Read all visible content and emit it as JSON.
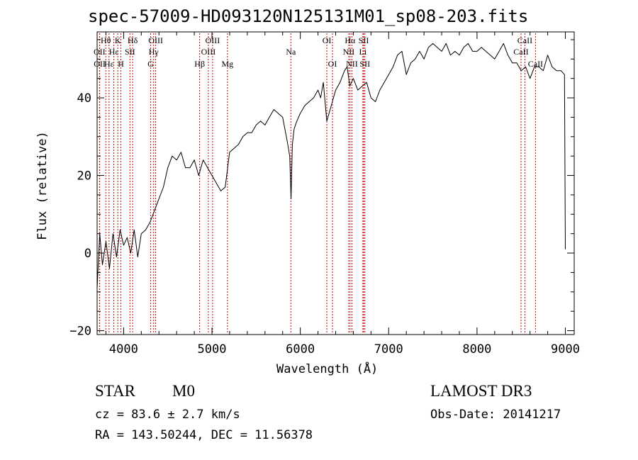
{
  "chart_data": {
    "type": "line",
    "title": "spec-57009-HD093120N125131M01_sp08-203.fits",
    "xlabel": "Wavelength (Å)",
    "ylabel": "Flux (relative)",
    "xlim": [
      3700,
      9100
    ],
    "ylim": [
      -21,
      57
    ],
    "xticks": [
      4000,
      5000,
      6000,
      7000,
      8000,
      9000
    ],
    "yticks": [
      -20,
      0,
      20,
      40
    ],
    "grid": false,
    "series": [
      {
        "name": "spectrum",
        "color": "#000000",
        "x": [
          3700,
          3730,
          3760,
          3800,
          3840,
          3880,
          3920,
          3960,
          4000,
          4040,
          4080,
          4120,
          4160,
          4200,
          4250,
          4300,
          4350,
          4400,
          4450,
          4500,
          4550,
          4600,
          4650,
          4700,
          4750,
          4800,
          4850,
          4900,
          4950,
          5000,
          5050,
          5100,
          5150,
          5200,
          5250,
          5300,
          5350,
          5400,
          5450,
          5500,
          5550,
          5600,
          5650,
          5700,
          5750,
          5800,
          5850,
          5880,
          5895,
          5910,
          5930,
          5960,
          6000,
          6050,
          6100,
          6150,
          6200,
          6230,
          6260,
          6300,
          6350,
          6400,
          6450,
          6500,
          6530,
          6560,
          6600,
          6650,
          6700,
          6750,
          6800,
          6850,
          6900,
          6950,
          7000,
          7050,
          7100,
          7150,
          7200,
          7250,
          7300,
          7350,
          7400,
          7450,
          7500,
          7550,
          7600,
          7650,
          7700,
          7750,
          7800,
          7850,
          7900,
          7950,
          8000,
          8050,
          8100,
          8150,
          8200,
          8250,
          8300,
          8350,
          8400,
          8450,
          8500,
          8550,
          8600,
          8650,
          8700,
          8750,
          8800,
          8850,
          8900,
          8950,
          8990,
          9000
        ],
        "y": [
          -9,
          5,
          -3,
          3,
          -4,
          5,
          -1,
          6,
          2,
          4,
          0,
          6,
          -1,
          5,
          6,
          8,
          11,
          14,
          17,
          22,
          25,
          24,
          26,
          22,
          22,
          24,
          20,
          24,
          22,
          20,
          18,
          16,
          17,
          26,
          27,
          28,
          30,
          31,
          31,
          33,
          34,
          33,
          35,
          37,
          36,
          35,
          29,
          25,
          14,
          28,
          32,
          34,
          36,
          38,
          39,
          40,
          42,
          40,
          44,
          34,
          38,
          42,
          44,
          47,
          48,
          43,
          45,
          42,
          43,
          44,
          40,
          39,
          42,
          44,
          46,
          48,
          51,
          52,
          46,
          49,
          50,
          52,
          50,
          53,
          54,
          53,
          52,
          54,
          51,
          52,
          51,
          53,
          54,
          52,
          52,
          53,
          52,
          51,
          50,
          52,
          54,
          51,
          49,
          49,
          47,
          48,
          45,
          48,
          48,
          47,
          51,
          48,
          47,
          47,
          46,
          1
        ]
      }
    ],
    "line_markers": [
      {
        "name": "Hθ",
        "x": 3798,
        "pos": "top",
        "color": "#cc0000"
      },
      {
        "name": "OII",
        "x": 3727,
        "pos": "mid",
        "color": "#cc0000"
      },
      {
        "name": "OII",
        "x": 3729,
        "pos": "low",
        "color": "#cc0000"
      },
      {
        "name": "K",
        "x": 3934,
        "pos": "top",
        "color": "#cc0000"
      },
      {
        "name": "Hε",
        "x": 3889,
        "pos": "mid",
        "color": "#cc0000"
      },
      {
        "name": "Hε",
        "x": 3835,
        "pos": "low",
        "color": "#cc0000"
      },
      {
        "name": "Hδ",
        "x": 4102,
        "pos": "top",
        "color": "#cc0000"
      },
      {
        "name": "SII",
        "x": 4072,
        "pos": "mid",
        "color": "#cc0000"
      },
      {
        "name": "H",
        "x": 3969,
        "pos": "low",
        "color": "#cc0000"
      },
      {
        "name": "OIII",
        "x": 4363,
        "pos": "top",
        "color": "#cc0000"
      },
      {
        "name": "Hγ",
        "x": 4340,
        "pos": "mid",
        "color": "#cc0000"
      },
      {
        "name": "G",
        "x": 4305,
        "pos": "low",
        "color": "#cc0000"
      },
      {
        "name": "OIII",
        "x": 5007,
        "pos": "top",
        "color": "#cc0000"
      },
      {
        "name": "OIII",
        "x": 4959,
        "pos": "mid",
        "color": "#cc0000"
      },
      {
        "name": "Hβ",
        "x": 4861,
        "pos": "low",
        "color": "#cc0000"
      },
      {
        "name": "Mg",
        "x": 5175,
        "pos": "low",
        "color": "#cc0000"
      },
      {
        "name": "Na",
        "x": 5893,
        "pos": "mid",
        "color": "#cc0000"
      },
      {
        "name": "OI",
        "x": 6300,
        "pos": "top",
        "color": "#cc0000"
      },
      {
        "name": "OI",
        "x": 6364,
        "pos": "low",
        "color": "#cc0000"
      },
      {
        "name": "Hα",
        "x": 6563,
        "pos": "top",
        "color": "#cc0000"
      },
      {
        "name": "SII",
        "x": 6717,
        "pos": "top",
        "color": "#cc0000"
      },
      {
        "name": "NII",
        "x": 6548,
        "pos": "mid",
        "color": "#cc0000"
      },
      {
        "name": "Li",
        "x": 6708,
        "pos": "mid",
        "color": "#cc0000"
      },
      {
        "name": "NII",
        "x": 6584,
        "pos": "low",
        "color": "#cc0000"
      },
      {
        "name": "SII",
        "x": 6731,
        "pos": "low",
        "color": "#cc0000"
      },
      {
        "name": "CaII",
        "x": 8542,
        "pos": "top",
        "color": "#cc0000"
      },
      {
        "name": "CaII",
        "x": 8498,
        "pos": "mid",
        "color": "#cc0000"
      },
      {
        "name": "CaII",
        "x": 8662,
        "pos": "low",
        "color": "#cc0000"
      }
    ]
  },
  "info": {
    "object_class": "STAR",
    "subclass": "M0",
    "survey": "LAMOST DR3",
    "redshift": "cz = 83.6 ± 2.7 km/s",
    "obs_date": "Obs-Date: 20141217",
    "coords": "RA = 143.50244, DEC =  11.56378"
  }
}
